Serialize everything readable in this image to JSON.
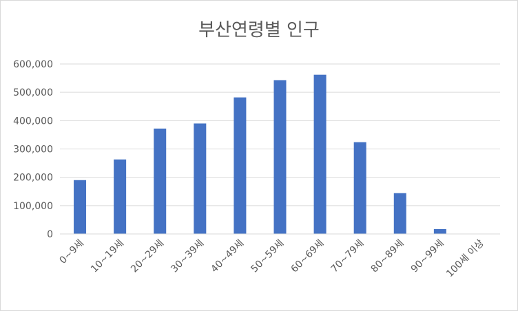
{
  "chart_data": {
    "type": "bar",
    "title": "부산연령별 인구",
    "categories": [
      "0~9세",
      "10~19세",
      "20~29세",
      "30~39세",
      "40~49세",
      "50~59세",
      "60~69세",
      "70~79세",
      "80~89세",
      "90~99세",
      "100세 이상"
    ],
    "values": [
      190000,
      263000,
      372000,
      390000,
      482000,
      543000,
      562000,
      324000,
      144000,
      17000,
      500
    ],
    "ylim": [
      0,
      600000
    ],
    "yticks": [
      0,
      100000,
      200000,
      300000,
      400000,
      500000,
      600000
    ],
    "ytick_labels": [
      "0",
      "100,000",
      "200,000",
      "300,000",
      "400,000",
      "500,000",
      "600,000"
    ],
    "grid": true,
    "legend": "none",
    "bar_color": "#4472c4"
  }
}
